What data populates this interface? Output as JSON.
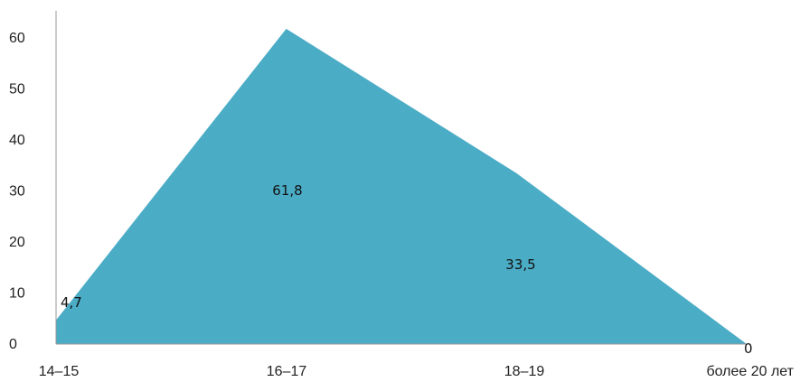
{
  "chart_data": {
    "type": "area",
    "categories": [
      "14–15",
      "16–17",
      "18–19",
      "более 20 лет"
    ],
    "series": [
      {
        "values": [
          4.7,
          61.8,
          33.5,
          0
        ],
        "color": "#4bacc6"
      }
    ],
    "data_labels": [
      "4,7",
      "61,8",
      "33,5",
      "0"
    ],
    "yticks": [
      "0",
      "10",
      "20",
      "30",
      "40",
      "50",
      "60"
    ],
    "ylim": [
      0,
      70
    ],
    "grid": false,
    "legend": "none",
    "axis_color": "#999999"
  }
}
